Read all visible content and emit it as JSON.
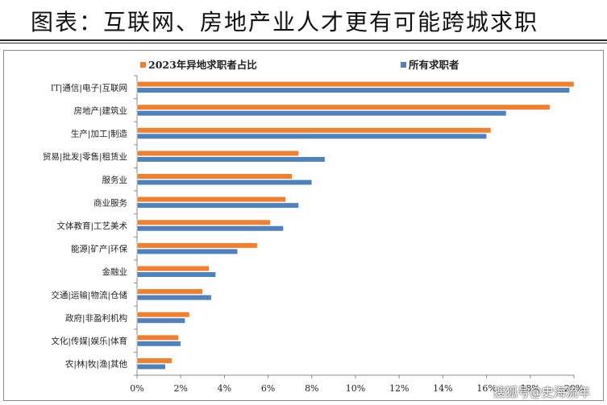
{
  "header": {
    "title": "图表：互联网、房地产业人才更有可能跨城求职"
  },
  "watermark": "搜狐号@史海流年",
  "chart_data": {
    "type": "bar",
    "orientation": "horizontal",
    "title": "",
    "xlabel": "",
    "ylabel": "",
    "categories": [
      "IT|通信|电子|互联网",
      "房地产|建筑业",
      "生产|加工|制造",
      "贸易|批发|零售|租赁业",
      "服务业",
      "商业服务",
      "文体教育|工艺美术",
      "能源|矿产|环保",
      "金融业",
      "交通|运输|物流|仓储",
      "政府|非盈利机构",
      "文化|传媒|娱乐|体育",
      "农|林|牧|渔|其他"
    ],
    "series": [
      {
        "name": "2023年异地求职者占比",
        "color": "#f07f2e",
        "values": [
          20.0,
          18.9,
          16.2,
          7.4,
          7.1,
          6.8,
          6.1,
          5.5,
          3.3,
          3.0,
          2.4,
          1.9,
          1.6
        ]
      },
      {
        "name": "所有求职者",
        "color": "#4f82bd",
        "values": [
          19.8,
          16.9,
          16.0,
          8.6,
          8.0,
          7.4,
          6.7,
          4.6,
          3.6,
          3.4,
          2.2,
          2.0,
          1.3
        ]
      }
    ],
    "xlim": [
      0,
      20
    ],
    "xticks": [
      "0%",
      "2%",
      "4%",
      "6%",
      "8%",
      "10%",
      "12%",
      "14%",
      "16%",
      "18%",
      "20%"
    ],
    "grid": false,
    "legend_position": "top"
  }
}
